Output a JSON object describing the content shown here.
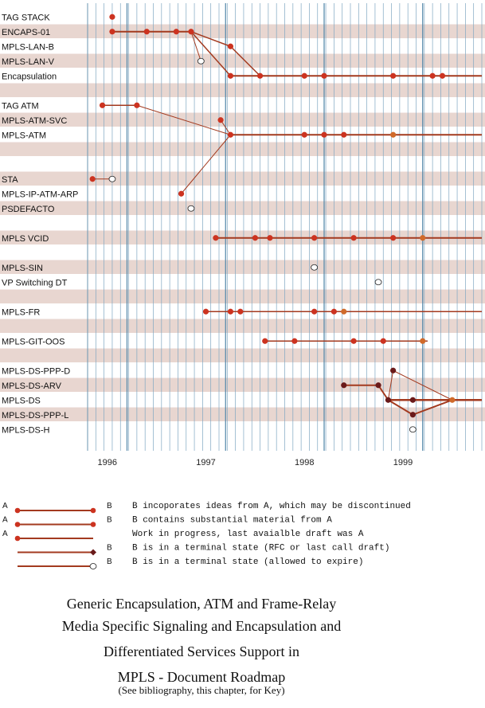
{
  "chart_data": {
    "type": "timeline",
    "xlim": [
      1995.8,
      1999.8
    ],
    "x_ticks": [
      "1996",
      "1997",
      "1998",
      "1999"
    ],
    "rows": [
      {
        "label": "TAG STACK",
        "shaded": false
      },
      {
        "label": "ENCAPS-01",
        "shaded": true
      },
      {
        "label": "MPLS-LAN-B",
        "shaded": false
      },
      {
        "label": "MPLS-LAN-V",
        "shaded": true
      },
      {
        "label": "Encapsulation",
        "shaded": false
      },
      {
        "label": "",
        "shaded": true
      },
      {
        "label": "TAG ATM",
        "shaded": false
      },
      {
        "label": "MPLS-ATM-SVC",
        "shaded": true
      },
      {
        "label": "MPLS-ATM",
        "shaded": false
      },
      {
        "label": "",
        "shaded": true
      },
      {
        "label": "",
        "shaded": false
      },
      {
        "label": "STA",
        "shaded": true
      },
      {
        "label": "MPLS-IP-ATM-ARP",
        "shaded": false
      },
      {
        "label": "PSDEFACTO",
        "shaded": true
      },
      {
        "label": "",
        "shaded": false
      },
      {
        "label": "MPLS VCID",
        "shaded": true
      },
      {
        "label": "",
        "shaded": false
      },
      {
        "label": "MPLS-SIN",
        "shaded": true
      },
      {
        "label": "VP Switching DT",
        "shaded": false
      },
      {
        "label": "",
        "shaded": true
      },
      {
        "label": "MPLS-FR",
        "shaded": false
      },
      {
        "label": "",
        "shaded": true
      },
      {
        "label": "MPLS-GIT-OOS",
        "shaded": false
      },
      {
        "label": "",
        "shaded": true
      },
      {
        "label": "MPLS-DS-PPP-D",
        "shaded": false
      },
      {
        "label": "MPLS-DS-ARV",
        "shaded": true
      },
      {
        "label": "MPLS-DS",
        "shaded": false
      },
      {
        "label": "MPLS-DS-PPP-L",
        "shaded": true
      },
      {
        "label": "MPLS-DS-H",
        "shaded": false
      }
    ],
    "lines": [
      {
        "row": 1,
        "x": [
          1996.05,
          1996.85
        ],
        "width": 2
      },
      {
        "row": 4,
        "x": [
          1997.25,
          1999.8
        ],
        "width": 2
      },
      {
        "row": 8,
        "x": [
          1997.25,
          1999.8
        ],
        "width": 2
      },
      {
        "row": 15,
        "x": [
          1997.1,
          1999.8
        ],
        "width": 2
      },
      {
        "row": 20,
        "x": [
          1997.0,
          1999.8
        ],
        "width": 1.5
      },
      {
        "row": 22,
        "x": [
          1997.6,
          1999.25
        ],
        "width": 1.5
      },
      {
        "row": 25,
        "x": [
          1998.4,
          1998.75
        ],
        "width": 2
      },
      {
        "row": 26,
        "x": [
          1998.85,
          1999.8
        ],
        "width": 2.5
      },
      {
        "row": 0,
        "x": [
          1996.05,
          1996.05
        ],
        "width": 0
      }
    ],
    "connectors": [
      {
        "from": [
          1996.85,
          1
        ],
        "to": [
          1997.25,
          2
        ],
        "width": 1.5
      },
      {
        "from": [
          1996.85,
          1
        ],
        "to": [
          1997.25,
          4
        ],
        "width": 1.5
      },
      {
        "from": [
          1997.25,
          2
        ],
        "to": [
          1997.55,
          4
        ],
        "width": 1.5
      },
      {
        "from": [
          1996.85,
          1
        ],
        "to": [
          1996.95,
          3
        ],
        "width": 1
      },
      {
        "from": [
          1996.3,
          6
        ],
        "to": [
          1997.25,
          8
        ],
        "width": 1
      },
      {
        "from": [
          1995.95,
          6
        ],
        "to": [
          1996.3,
          6
        ],
        "width": 1.5
      },
      {
        "from": [
          1997.15,
          7
        ],
        "to": [
          1997.25,
          8
        ],
        "width": 1
      },
      {
        "from": [
          1996.75,
          12
        ],
        "to": [
          1997.25,
          8
        ],
        "width": 1
      },
      {
        "from": [
          1995.85,
          11
        ],
        "to": [
          1996.05,
          11
        ],
        "width": 1
      },
      {
        "from": [
          1998.75,
          25
        ],
        "to": [
          1998.85,
          26
        ],
        "width": 2
      },
      {
        "from": [
          1998.85,
          26
        ],
        "to": [
          1999.1,
          27
        ],
        "width": 2
      },
      {
        "from": [
          1999.1,
          27
        ],
        "to": [
          1999.5,
          26
        ],
        "width": 2
      },
      {
        "from": [
          1998.9,
          24
        ],
        "to": [
          1999.5,
          26
        ],
        "width": 1
      },
      {
        "from": [
          1998.9,
          24
        ],
        "to": [
          1998.85,
          26
        ],
        "width": 1
      }
    ],
    "points": [
      {
        "row": 0,
        "x": 1996.05,
        "kind": "red"
      },
      {
        "row": 1,
        "x": 1996.05,
        "kind": "red"
      },
      {
        "row": 1,
        "x": 1996.4,
        "kind": "red"
      },
      {
        "row": 1,
        "x": 1996.7,
        "kind": "red"
      },
      {
        "row": 1,
        "x": 1996.85,
        "kind": "red"
      },
      {
        "row": 2,
        "x": 1997.25,
        "kind": "red"
      },
      {
        "row": 3,
        "x": 1996.95,
        "kind": "open"
      },
      {
        "row": 4,
        "x": 1997.25,
        "kind": "red"
      },
      {
        "row": 4,
        "x": 1997.55,
        "kind": "red"
      },
      {
        "row": 4,
        "x": 1998.0,
        "kind": "red"
      },
      {
        "row": 4,
        "x": 1998.2,
        "kind": "red"
      },
      {
        "row": 4,
        "x": 1998.9,
        "kind": "red"
      },
      {
        "row": 4,
        "x": 1999.3,
        "kind": "red"
      },
      {
        "row": 4,
        "x": 1999.4,
        "kind": "red"
      },
      {
        "row": 6,
        "x": 1995.95,
        "kind": "red"
      },
      {
        "row": 6,
        "x": 1996.3,
        "kind": "red"
      },
      {
        "row": 7,
        "x": 1997.15,
        "kind": "red"
      },
      {
        "row": 8,
        "x": 1997.25,
        "kind": "red"
      },
      {
        "row": 8,
        "x": 1998.0,
        "kind": "red"
      },
      {
        "row": 8,
        "x": 1998.2,
        "kind": "red"
      },
      {
        "row": 8,
        "x": 1998.4,
        "kind": "red"
      },
      {
        "row": 8,
        "x": 1998.9,
        "kind": "orange"
      },
      {
        "row": 11,
        "x": 1995.85,
        "kind": "red"
      },
      {
        "row": 11,
        "x": 1996.05,
        "kind": "open"
      },
      {
        "row": 12,
        "x": 1996.75,
        "kind": "red"
      },
      {
        "row": 13,
        "x": 1996.85,
        "kind": "open"
      },
      {
        "row": 15,
        "x": 1997.1,
        "kind": "red"
      },
      {
        "row": 15,
        "x": 1997.5,
        "kind": "red"
      },
      {
        "row": 15,
        "x": 1997.65,
        "kind": "red"
      },
      {
        "row": 15,
        "x": 1998.1,
        "kind": "red"
      },
      {
        "row": 15,
        "x": 1998.5,
        "kind": "red"
      },
      {
        "row": 15,
        "x": 1998.9,
        "kind": "red"
      },
      {
        "row": 15,
        "x": 1999.2,
        "kind": "orange"
      },
      {
        "row": 17,
        "x": 1998.1,
        "kind": "open"
      },
      {
        "row": 18,
        "x": 1998.75,
        "kind": "open"
      },
      {
        "row": 20,
        "x": 1997.0,
        "kind": "red"
      },
      {
        "row": 20,
        "x": 1997.25,
        "kind": "red"
      },
      {
        "row": 20,
        "x": 1997.35,
        "kind": "red"
      },
      {
        "row": 20,
        "x": 1998.1,
        "kind": "red"
      },
      {
        "row": 20,
        "x": 1998.3,
        "kind": "red"
      },
      {
        "row": 20,
        "x": 1998.4,
        "kind": "orange"
      },
      {
        "row": 22,
        "x": 1997.6,
        "kind": "red"
      },
      {
        "row": 22,
        "x": 1997.9,
        "kind": "red"
      },
      {
        "row": 22,
        "x": 1998.5,
        "kind": "red"
      },
      {
        "row": 22,
        "x": 1998.8,
        "kind": "red"
      },
      {
        "row": 22,
        "x": 1999.2,
        "kind": "orange"
      },
      {
        "row": 24,
        "x": 1998.9,
        "kind": "dark"
      },
      {
        "row": 25,
        "x": 1998.4,
        "kind": "dark"
      },
      {
        "row": 25,
        "x": 1998.75,
        "kind": "dark"
      },
      {
        "row": 26,
        "x": 1998.85,
        "kind": "dark"
      },
      {
        "row": 26,
        "x": 1999.1,
        "kind": "dark"
      },
      {
        "row": 26,
        "x": 1999.5,
        "kind": "orange"
      },
      {
        "row": 27,
        "x": 1999.1,
        "kind": "dark"
      },
      {
        "row": 28,
        "x": 1999.1,
        "kind": "open"
      }
    ],
    "colors": {
      "line": "#a33a1f",
      "dot_red": "#cc3320",
      "dot_dark": "#6a1a1a",
      "dot_orange": "#d06a2a",
      "stripe": "#e8d6d0",
      "grid": "#7fa7c2",
      "grid_major": "#4f85a8"
    },
    "grid": true
  },
  "key": {
    "items": [
      {
        "a": "A",
        "b": "B",
        "text": "B incoporates ideas from A, which may be discontinued",
        "end": "dot"
      },
      {
        "a": "A",
        "b": "B",
        "text": "B contains substantial material from A",
        "end": "dot"
      },
      {
        "a": "A",
        "b": "",
        "text": "Work in progress, last avaialble draft was  A",
        "end": "none"
      },
      {
        "a": "",
        "b": "B",
        "text": "B is in a terminal state (RFC or last call draft)",
        "end": "diamond"
      },
      {
        "a": "",
        "b": "B",
        "text": "B is in a terminal state (allowed to expire)",
        "end": "open"
      }
    ]
  },
  "caption": {
    "line1": "Generic Encapsulation, ATM and Frame-Relay",
    "line2": "Media Specific Signaling and Encapsulation and",
    "line3": "Differentiated Services Support in",
    "line4": "MPLS - Document Roadmap",
    "note": "(See bibliography, this chapter, for Key)"
  }
}
